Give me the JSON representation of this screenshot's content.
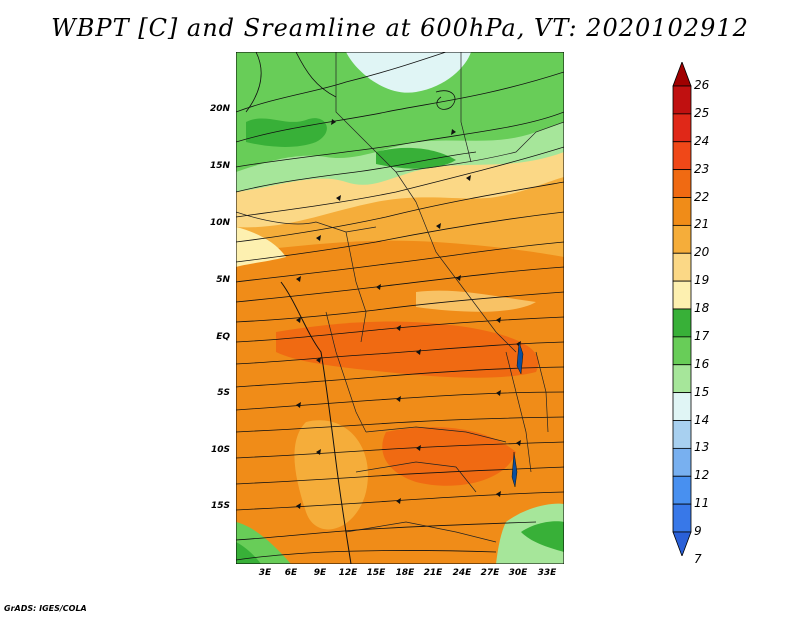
{
  "title": "WBPT [C] and Sreamline at 600hPa, VT: 2020102912",
  "credit": "GrADS: IGES/COLA",
  "map": {
    "lat_labels": [
      "20N",
      "15N",
      "10N",
      "5N",
      "EQ",
      "5S",
      "10S",
      "15S"
    ],
    "lon_labels": [
      "3E",
      "6E",
      "9E",
      "12E",
      "15E",
      "18E",
      "21E",
      "24E",
      "27E",
      "30E",
      "33E"
    ]
  },
  "colorbar": {
    "labels": [
      "26",
      "25",
      "24",
      "23",
      "22",
      "21",
      "20",
      "19",
      "18",
      "17",
      "16",
      "15",
      "14",
      "13",
      "12",
      "11",
      "9",
      "7"
    ],
    "colors": [
      "#a00000",
      "#c01010",
      "#e02818",
      "#f04818",
      "#f06a12",
      "#f08c18",
      "#f5ad3a",
      "#fbd886",
      "#fdf0b0",
      "#38b038",
      "#68cd58",
      "#a6e69a",
      "#e0f5f5",
      "#a8d0f0",
      "#78b0f0",
      "#4890f0",
      "#3878e8",
      "#2a60d8"
    ]
  }
}
